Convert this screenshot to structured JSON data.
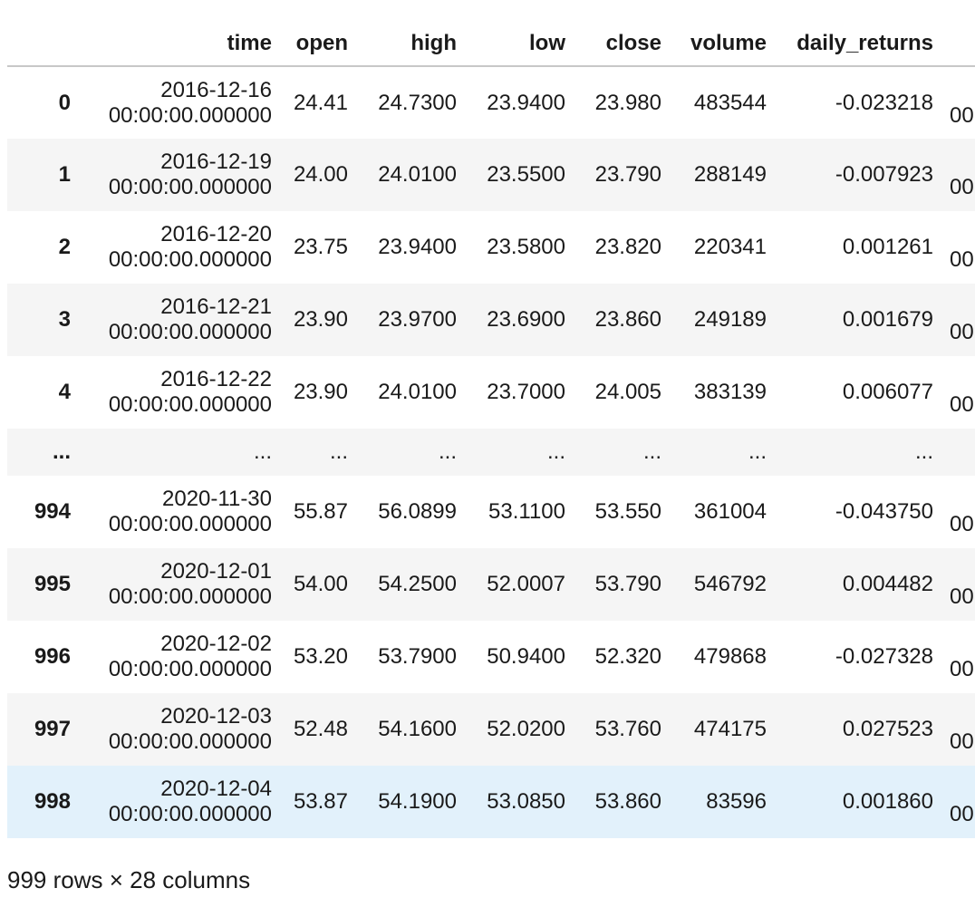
{
  "table": {
    "columns": [
      "",
      "time",
      "open",
      "high",
      "low",
      "close",
      "volume",
      "daily_returns",
      ""
    ],
    "rows": [
      {
        "index": "0",
        "date": "2016-12-16",
        "clock": "00:00:00.000000",
        "open": "24.41",
        "high": "24.7300",
        "low": "23.9400",
        "close": "23.980",
        "volume": "483544",
        "daily_returns": "-0.023218",
        "next": "00"
      },
      {
        "index": "1",
        "date": "2016-12-19",
        "clock": "00:00:00.000000",
        "open": "24.00",
        "high": "24.0100",
        "low": "23.5500",
        "close": "23.790",
        "volume": "288149",
        "daily_returns": "-0.007923",
        "next": "00"
      },
      {
        "index": "2",
        "date": "2016-12-20",
        "clock": "00:00:00.000000",
        "open": "23.75",
        "high": "23.9400",
        "low": "23.5800",
        "close": "23.820",
        "volume": "220341",
        "daily_returns": "0.001261",
        "next": "00"
      },
      {
        "index": "3",
        "date": "2016-12-21",
        "clock": "00:00:00.000000",
        "open": "23.90",
        "high": "23.9700",
        "low": "23.6900",
        "close": "23.860",
        "volume": "249189",
        "daily_returns": "0.001679",
        "next": "00"
      },
      {
        "index": "4",
        "date": "2016-12-22",
        "clock": "00:00:00.000000",
        "open": "23.90",
        "high": "24.0100",
        "low": "23.7000",
        "close": "24.005",
        "volume": "383139",
        "daily_returns": "0.006077",
        "next": "00"
      },
      {
        "index": "...",
        "date": "...",
        "clock": "",
        "open": "...",
        "high": "...",
        "low": "...",
        "close": "...",
        "volume": "...",
        "daily_returns": "...",
        "next": ""
      },
      {
        "index": "994",
        "date": "2020-11-30",
        "clock": "00:00:00.000000",
        "open": "55.87",
        "high": "56.0899",
        "low": "53.1100",
        "close": "53.550",
        "volume": "361004",
        "daily_returns": "-0.043750",
        "next": "00"
      },
      {
        "index": "995",
        "date": "2020-12-01",
        "clock": "00:00:00.000000",
        "open": "54.00",
        "high": "54.2500",
        "low": "52.0007",
        "close": "53.790",
        "volume": "546792",
        "daily_returns": "0.004482",
        "next": "00"
      },
      {
        "index": "996",
        "date": "2020-12-02",
        "clock": "00:00:00.000000",
        "open": "53.20",
        "high": "53.7900",
        "low": "50.9400",
        "close": "52.320",
        "volume": "479868",
        "daily_returns": "-0.027328",
        "next": "00"
      },
      {
        "index": "997",
        "date": "2020-12-03",
        "clock": "00:00:00.000000",
        "open": "52.48",
        "high": "54.1600",
        "low": "52.0200",
        "close": "53.760",
        "volume": "474175",
        "daily_returns": "0.027523",
        "next": "00"
      },
      {
        "index": "998",
        "date": "2020-12-04",
        "clock": "00:00:00.000000",
        "open": "53.87",
        "high": "54.1900",
        "low": "53.0850",
        "close": "53.860",
        "volume": "83596",
        "daily_returns": "0.001860",
        "next": "00"
      }
    ]
  },
  "summary": "999 rows × 28 columns",
  "colors": {
    "stripe": "#f5f5f5",
    "hover_row": "#e2f1fb",
    "header_rule": "#c8c8c8"
  }
}
